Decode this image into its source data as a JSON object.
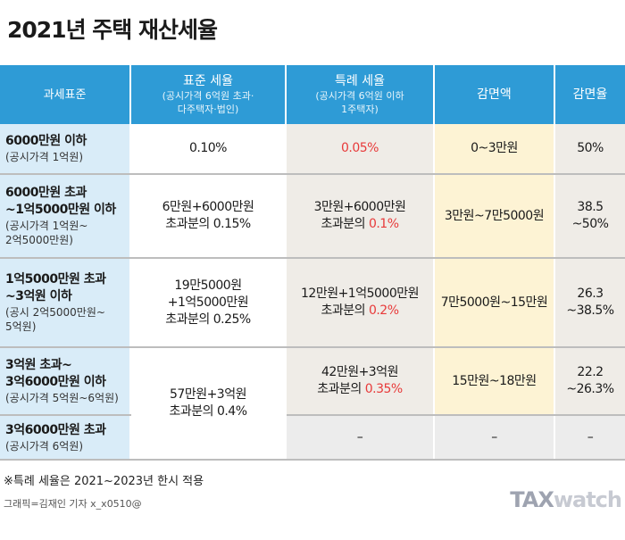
{
  "title": "2021년 주택 재산세율",
  "header": {
    "col0": "과세표준",
    "col1_main": "표준 세율",
    "col1_sub1": "(공시가격 6억원 초과·",
    "col1_sub2": "다주택자·법인)",
    "col2_main": "특례 세율",
    "col2_sub1": "(공시가격 6억원 이하",
    "col2_sub2": "1주택자)",
    "col3": "감면액",
    "col4": "감면율"
  },
  "rows": [
    {
      "bracket": "6000만원 이하",
      "note": "(공시가격 1억원)",
      "standard": "0.10%",
      "special": "0.05%",
      "reduction": "0~3만원",
      "rate": "50%"
    },
    {
      "bracket1": "6000만원 초과",
      "bracket2": "~1억5000만원 이하",
      "note1": "(공시가격 1억원~",
      "note2": "2억5000만원)",
      "standard1": "6만원+6000만원",
      "standard2": "초과분의 0.15%",
      "special1": "3만원+6000만원",
      "special2_pre": "초과분의 ",
      "special2_rate": "0.1%",
      "reduction": "3만원~7만5000원",
      "rate1": "38.5",
      "rate2": "~50%"
    },
    {
      "bracket1": "1억5000만원 초과",
      "bracket2": "~3억원 이하",
      "note1": "(공시 2억5000만원~",
      "note2": "5억원)",
      "standard1": "19만5000원",
      "standard2": "+1억5000만원",
      "standard3": "초과분의 0.25%",
      "special1": "12만원+1억5000만원",
      "special2_pre": "초과분의 ",
      "special2_rate": "0.2%",
      "reduction": "7만5000원~15만원",
      "rate1": "26.3",
      "rate2": "~38.5%"
    },
    {
      "bracket1": "3억원 초과~",
      "bracket2": "3억6000만원 이하",
      "note": "(공시가격 5억원~6억원)",
      "standard1": "57만원+3억원",
      "standard2": "초과분의 0.4%",
      "special1": "42만원+3억원",
      "special2_pre": "초과분의 ",
      "special2_rate": "0.35%",
      "reduction": "15만원~18만원",
      "rate1": "22.2",
      "rate2": "~26.3%"
    },
    {
      "bracket": "3억6000만원 초과",
      "note": "(공시가격 6억원)",
      "special": "–",
      "reduction": "–",
      "rate": "–"
    }
  ],
  "footnote": "※특례 세율은 2021~2023년 한시 적용",
  "credit": "그래픽=김재인 기자 x_x0510@",
  "logo": {
    "part1": "TAX",
    "part2": "watch"
  },
  "colors": {
    "header_bg": "#2e9bd6",
    "highlight_red": "#e83a3a"
  }
}
